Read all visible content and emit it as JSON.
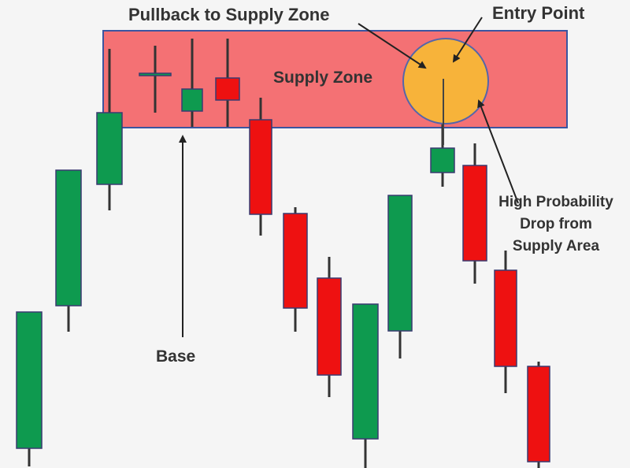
{
  "chart_data": {
    "type": "candlestick",
    "candles": [
      {
        "open": 25,
        "close": 198,
        "high": 198,
        "low": 2,
        "color": "green"
      },
      {
        "open": 206,
        "close": 378,
        "high": 378,
        "low": 173,
        "color": "green"
      },
      {
        "open": 360,
        "close": 451,
        "high": 532,
        "low": 327,
        "color": "green"
      },
      {
        "open": 499,
        "close": 501,
        "high": 536,
        "low": 451,
        "color": "green"
      },
      {
        "open": 453,
        "close": 481,
        "high": 545,
        "low": 433,
        "color": "green"
      },
      {
        "open": 495,
        "close": 467,
        "high": 545,
        "low": 433,
        "color": "red"
      },
      {
        "open": 442,
        "close": 322,
        "high": 470,
        "low": 295,
        "color": "red"
      },
      {
        "open": 323,
        "close": 203,
        "high": 331,
        "low": 173,
        "color": "red"
      },
      {
        "open": 241,
        "close": 118,
        "high": 268,
        "low": 90,
        "color": "red"
      },
      {
        "open": 37,
        "close": 208,
        "high": 208,
        "low": 0,
        "color": "green"
      },
      {
        "open": 174,
        "close": 346,
        "high": 346,
        "low": 139,
        "color": "green"
      },
      {
        "open": 375,
        "close": 406,
        "high": 438,
        "low": 357,
        "color": "green"
      },
      {
        "open": 384,
        "close": 263,
        "high": 412,
        "low": 234,
        "color": "red"
      },
      {
        "open": 251,
        "close": 129,
        "high": 276,
        "low": 95,
        "color": "red"
      },
      {
        "open": 129,
        "close": 8,
        "high": 135,
        "low": 0,
        "color": "red"
      }
    ],
    "ylim": [
      0,
      594
    ],
    "zone": {
      "top": 555,
      "bottom": 432,
      "color": "#f47174",
      "border": "#3b55a0"
    },
    "entry_circle": {
      "color": "#f7b33a",
      "border": "#5566aa"
    },
    "annotations": [
      {
        "text": "Pullback to Supply Zone"
      },
      {
        "text": "Entry Point"
      },
      {
        "text": "Supply Zone"
      },
      {
        "text": "Base"
      },
      {
        "text": "High Probability"
      },
      {
        "text": "Drop from"
      },
      {
        "text": "Supply Area"
      }
    ],
    "colors": {
      "green": "#0e9a4f",
      "red": "#ee1111",
      "wick": "#333333"
    }
  }
}
